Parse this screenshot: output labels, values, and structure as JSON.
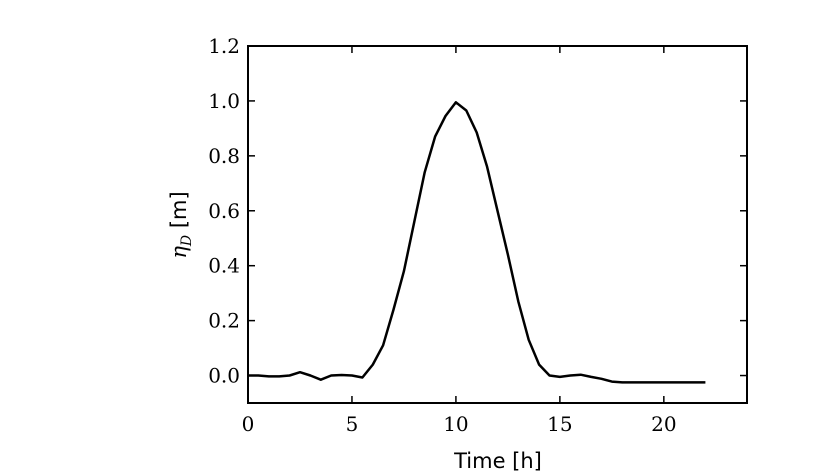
{
  "chart_data": {
    "type": "line",
    "title": "",
    "xlabel": "Time [h]",
    "ylabel": {
      "symbol": "η",
      "subscript": "D",
      "unit": "[m]"
    },
    "xlim": [
      0,
      24
    ],
    "ylim": [
      -0.1,
      1.2
    ],
    "xticks": [
      0,
      5,
      10,
      15,
      20
    ],
    "xtick_labels": [
      "0",
      "5",
      "10",
      "15",
      "20"
    ],
    "yticks": [
      0.0,
      0.2,
      0.4,
      0.6,
      0.8,
      1.0,
      1.2
    ],
    "ytick_labels": [
      "0.0",
      "0.2",
      "0.4",
      "0.6",
      "0.8",
      "1.0",
      "1.2"
    ],
    "grid": false,
    "line_color": "#000000",
    "series": [
      {
        "x": [
          0,
          0.5,
          1,
          1.5,
          2,
          2.5,
          3,
          3.5,
          4,
          4.5,
          5,
          5.5,
          6,
          6.5,
          7,
          7.5,
          8,
          8.5,
          9,
          9.5,
          10,
          10.5,
          11,
          11.5,
          12,
          12.5,
          13,
          13.5,
          14,
          14.5,
          15,
          15.5,
          16,
          16.5,
          17,
          17.5,
          18,
          18.5,
          19,
          19.5,
          20,
          20.5,
          21,
          21.5,
          22
        ],
        "y": [
          0.0,
          0.0,
          -0.003,
          -0.003,
          0.0,
          0.012,
          0.0,
          -0.015,
          0.0,
          0.002,
          0.0,
          -0.007,
          0.04,
          0.11,
          0.24,
          0.38,
          0.56,
          0.74,
          0.87,
          0.945,
          0.995,
          0.965,
          0.885,
          0.76,
          0.6,
          0.44,
          0.27,
          0.13,
          0.04,
          0.0,
          -0.005,
          0.0,
          0.003,
          -0.005,
          -0.012,
          -0.022,
          -0.025,
          -0.025,
          -0.025,
          -0.025,
          -0.025,
          -0.025,
          -0.025,
          -0.025,
          -0.025
        ]
      }
    ]
  }
}
